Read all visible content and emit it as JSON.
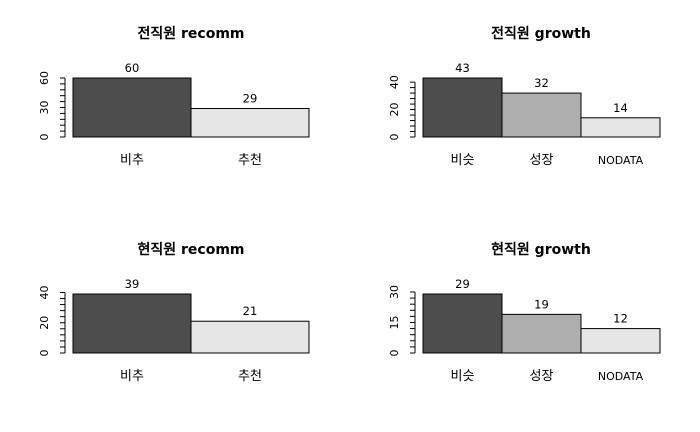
{
  "chart_data": [
    {
      "type": "bar",
      "title": "전직원 recomm",
      "categories": [
        "비추",
        "추천"
      ],
      "values": [
        60,
        29
      ],
      "colors": [
        "#4d4d4d",
        "#e6e6e6"
      ],
      "yticks": [
        0,
        30,
        60
      ],
      "ylim": [
        0,
        60
      ],
      "xlabel": "",
      "ylabel": ""
    },
    {
      "type": "bar",
      "title": "전직원 growth",
      "categories": [
        "비슷",
        "성장",
        "NODATA"
      ],
      "values": [
        43,
        32,
        14
      ],
      "colors": [
        "#4d4d4d",
        "#aeaeae",
        "#e6e6e6"
      ],
      "yticks": [
        0,
        20,
        40
      ],
      "ylim": [
        0,
        43
      ],
      "xlabel": "",
      "ylabel": ""
    },
    {
      "type": "bar",
      "title": "현직원 recomm",
      "categories": [
        "비추",
        "추천"
      ],
      "values": [
        39,
        21
      ],
      "colors": [
        "#4d4d4d",
        "#e6e6e6"
      ],
      "yticks": [
        0,
        20,
        40
      ],
      "ylim": [
        0,
        39
      ],
      "xlabel": "",
      "ylabel": ""
    },
    {
      "type": "bar",
      "title": "현직원 growth",
      "categories": [
        "비슷",
        "성장",
        "NODATA"
      ],
      "values": [
        29,
        19,
        12
      ],
      "colors": [
        "#4d4d4d",
        "#aeaeae",
        "#e6e6e6"
      ],
      "yticks": [
        0,
        15,
        30
      ],
      "ylim": [
        0,
        29
      ],
      "xlabel": "",
      "ylabel": ""
    }
  ]
}
